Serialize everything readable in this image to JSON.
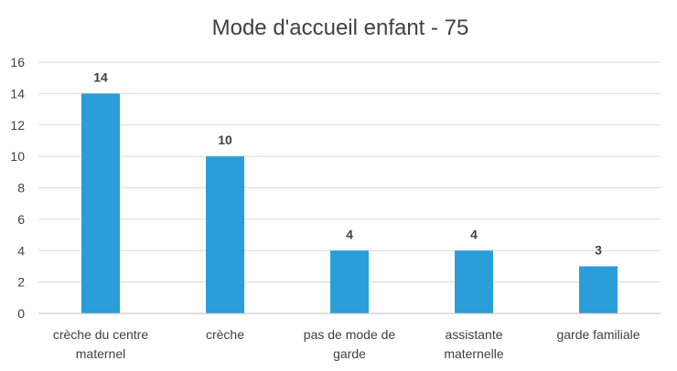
{
  "chart_data": {
    "type": "bar",
    "title": "Mode d'accueil enfant - 75",
    "xlabel": "",
    "ylabel": "",
    "categories": [
      [
        "crèche du centre",
        "maternel"
      ],
      [
        "crèche"
      ],
      [
        "pas de mode de",
        "garde"
      ],
      [
        "assistante",
        "maternelle"
      ],
      [
        "garde familiale"
      ]
    ],
    "values": [
      14,
      10,
      4,
      4,
      3
    ],
    "ylim": [
      0,
      16
    ],
    "yticks": [
      0,
      2,
      4,
      6,
      8,
      10,
      12,
      14,
      16
    ],
    "grid": true,
    "legend": "none",
    "bar_color": "#2A9ED8",
    "grid_color": "#D9D9D9",
    "axis_color": "#BFBFBF",
    "text_color": "#404040"
  }
}
